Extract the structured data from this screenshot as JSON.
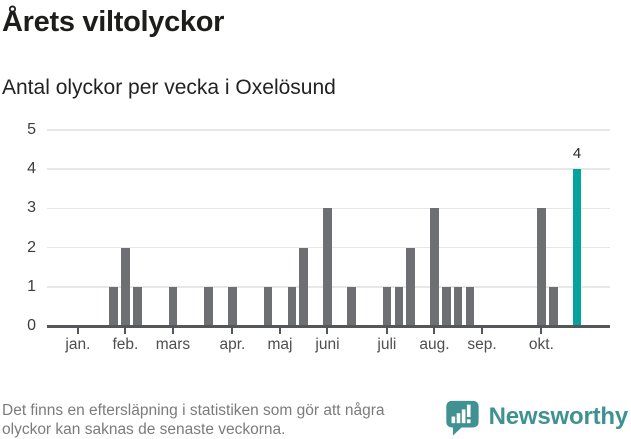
{
  "chart_data": {
    "type": "bar",
    "title": "Årets viltolyckor",
    "subtitle": "Antal olyckor per vecka i Oxelösund",
    "x_unit": "iso-week",
    "weeks": [
      4,
      5,
      6,
      9,
      12,
      14,
      17,
      19,
      20,
      22,
      24,
      27,
      28,
      29,
      31,
      32,
      33,
      34,
      40,
      41,
      43
    ],
    "values": [
      1,
      2,
      1,
      1,
      1,
      1,
      1,
      1,
      2,
      3,
      1,
      1,
      1,
      2,
      3,
      1,
      1,
      1,
      3,
      1,
      4
    ],
    "highlight_week": 43,
    "annotation": {
      "week": 43,
      "value": 4,
      "text": "4"
    },
    "y_ticks": [
      0,
      1,
      2,
      3,
      4,
      5
    ],
    "ylim": [
      0,
      5
    ],
    "grid": "horizontal-only",
    "month_ticks": [
      {
        "label": "jan.",
        "week": 1
      },
      {
        "label": "feb.",
        "week": 5
      },
      {
        "label": "mars",
        "week": 9
      },
      {
        "label": "apr.",
        "week": 14
      },
      {
        "label": "maj",
        "week": 18
      },
      {
        "label": "juni",
        "week": 22
      },
      {
        "label": "juli",
        "week": 27
      },
      {
        "label": "aug.",
        "week": 31
      },
      {
        "label": "sep.",
        "week": 35
      },
      {
        "label": "okt.",
        "week": 40
      }
    ],
    "bar_color": "#6e6f72",
    "highlight_color": "#07a29f",
    "grid_color": "#e7e7e7",
    "axis_color": "#55565a"
  },
  "footnote": {
    "line1": "Det finns en eftersläpning i statistiken som gör att några",
    "line2": "olyckor kan saknas de senaste veckorna."
  },
  "brand": {
    "name": "Newsworthy",
    "icon": "newsworthy-bubble-barchart-icon",
    "color": "#3f9192"
  }
}
